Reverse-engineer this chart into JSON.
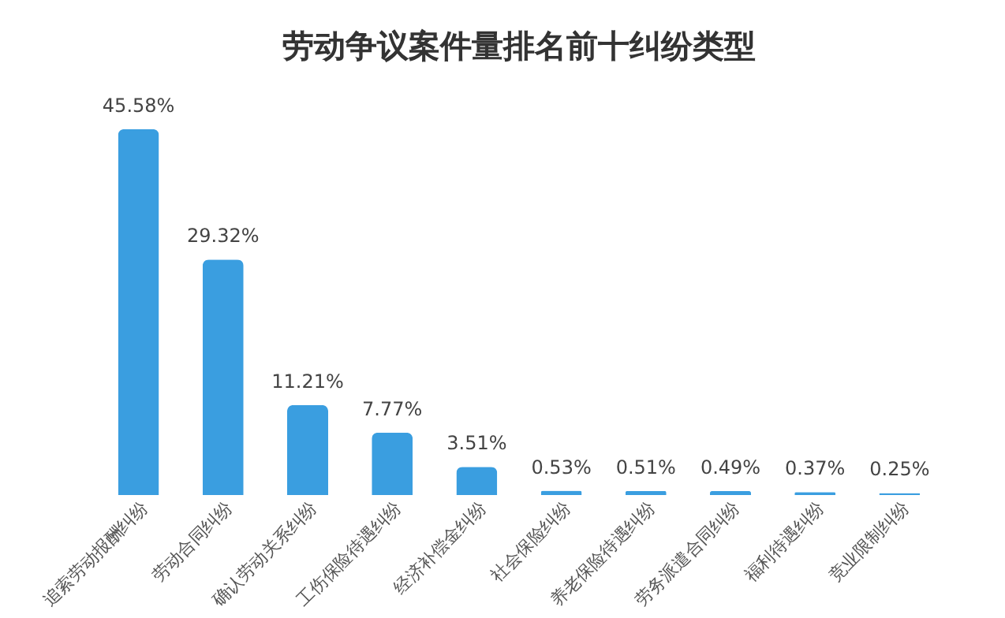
{
  "chart_data": {
    "type": "bar",
    "title": "劳动争议案件量排名前十纠纷类型",
    "categories": [
      "追索劳动报酬纠纷",
      "劳动合同纠纷",
      "确认劳动关系纠纷",
      "工伤保险待遇纠纷",
      "经济补偿金纠纷",
      "社会保险纠纷",
      "养老保险待遇纠纷",
      "劳务派遣合同纠纷",
      "福利待遇纠纷",
      "竞业限制纠纷"
    ],
    "values": [
      45.58,
      29.32,
      11.21,
      7.77,
      3.51,
      0.53,
      0.51,
      0.49,
      0.37,
      0.25
    ],
    "value_labels": [
      "45.58%",
      "29.32%",
      "11.21%",
      "7.77%",
      "3.51%",
      "0.53%",
      "0.51%",
      "0.49%",
      "0.37%",
      "0.25%"
    ],
    "color": "#3a9ee0",
    "tick_labels": "x"
  }
}
